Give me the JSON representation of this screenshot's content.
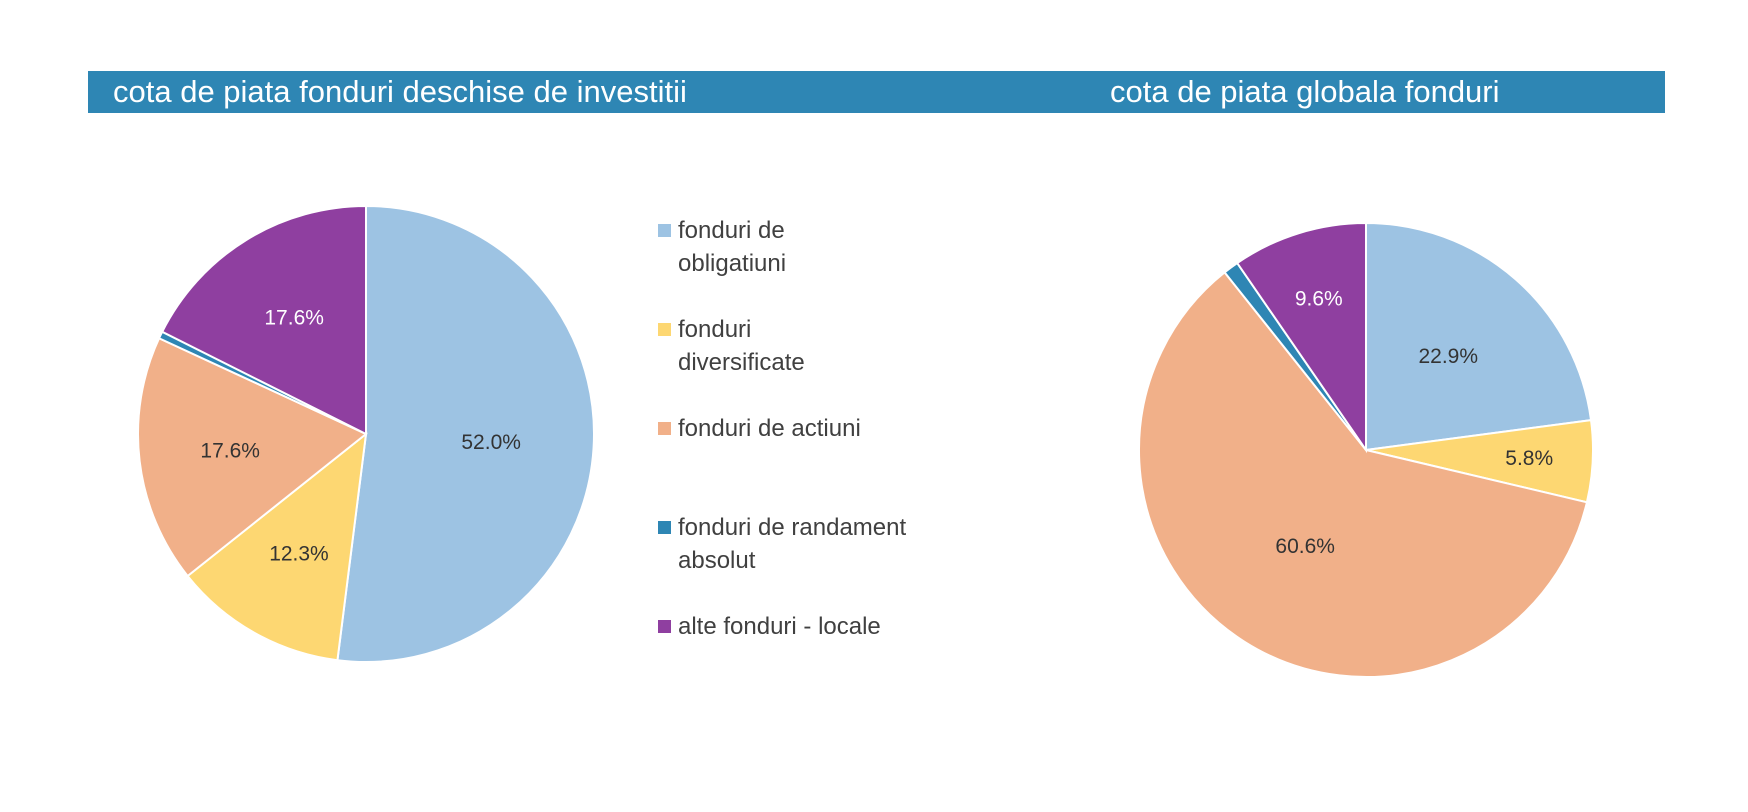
{
  "colors": {
    "header": "#2e86b4",
    "slices": [
      "#9dc3e3",
      "#fdd772",
      "#f1b089",
      "#2e86b4",
      "#8f3fa0"
    ]
  },
  "titles": {
    "left": "cota de piata fonduri deschise de investitii",
    "right": "cota de piata globala fonduri"
  },
  "legend": [
    {
      "label": "fonduri de obligatiuni"
    },
    {
      "label": "fonduri diversificate"
    },
    {
      "label": "fonduri de actiuni"
    },
    {
      "label": "fonduri de randament absolut"
    },
    {
      "label": "alte fonduri - locale"
    }
  ],
  "chart_data": [
    {
      "type": "pie",
      "title": "cota de piata fonduri deschise de investitii",
      "categories": [
        "fonduri de obligatiuni",
        "fonduri diversificate",
        "fonduri de actiuni",
        "fonduri de randament absolut",
        "alte fonduri - locale"
      ],
      "values": [
        52.0,
        12.3,
        17.6,
        0.5,
        17.6
      ],
      "labels": [
        "52.0%",
        "12.3%",
        "17.6%",
        "",
        "17.6%"
      ],
      "legend": "right"
    },
    {
      "type": "pie",
      "title": "cota de piata globala fonduri",
      "categories": [
        "fonduri de obligatiuni",
        "fonduri diversificate",
        "fonduri de actiuni",
        "fonduri de randament absolut",
        "alte fonduri - locale"
      ],
      "values": [
        22.9,
        5.8,
        60.6,
        1.1,
        9.6
      ],
      "labels": [
        "22.9%",
        "5.8%",
        "60.6%",
        "",
        "9.6%"
      ]
    }
  ]
}
